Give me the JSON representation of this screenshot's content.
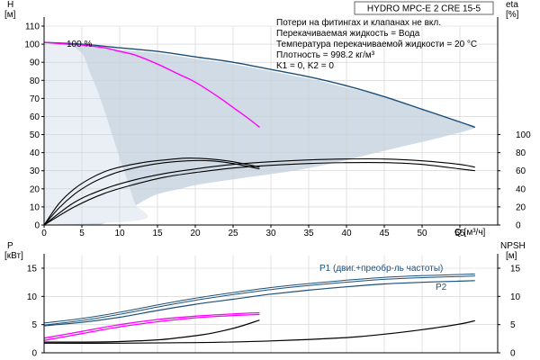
{
  "chart_title": "HYDRO MPC-E 2 CRE 15-5",
  "colors": {
    "envelope": "#d0dbe5",
    "envelope_light": "#e9eff5",
    "dark_blue": "#1b4f7a",
    "pump_curve": "#1b4f7a",
    "magenta": "#ff00ff",
    "black": "#000000"
  },
  "chart_data": [
    {
      "type": "line",
      "id": "head",
      "xlabel": "Q [м³/ч]",
      "ylabel_left": "H\n[м]",
      "ylabel_right": "eta\n[%]",
      "xlim": [
        0,
        60
      ],
      "ylim": [
        0,
        110
      ],
      "x_ticks": [
        0,
        5,
        10,
        15,
        20,
        25,
        30,
        35,
        40,
        45,
        50,
        55
      ],
      "y_ticks": [
        0,
        10,
        20,
        30,
        40,
        50,
        60,
        70,
        80,
        90,
        100,
        110
      ],
      "eta_ticks": [
        0,
        20,
        40,
        60,
        80,
        100
      ],
      "eta_scale": "eta% at H = eta/2",
      "annotation_100": "100 %",
      "notes": [
        "Потери на фитингах и клапанах не вкл.",
        "Перекачиваемая жидкость = Вода",
        "Температура перекачиваемой жидкости = 20 °C",
        "Плотность = 998.2 кг/м³",
        "K1 = 0, K2 = 0"
      ],
      "envelope_outer": [
        [
          0,
          101
        ],
        [
          5,
          99
        ],
        [
          10,
          97
        ],
        [
          15,
          95
        ],
        [
          20,
          92
        ],
        [
          25,
          89
        ],
        [
          30,
          85
        ],
        [
          35,
          81
        ],
        [
          40,
          76
        ],
        [
          45,
          71
        ],
        [
          50,
          64
        ],
        [
          55,
          57
        ],
        [
          57,
          54
        ],
        [
          53,
          49
        ],
        [
          48,
          44
        ],
        [
          43,
          39
        ],
        [
          38,
          34
        ],
        [
          33,
          30
        ],
        [
          28,
          27
        ],
        [
          23,
          24
        ],
        [
          20,
          22
        ],
        [
          18,
          20
        ],
        [
          15,
          17
        ],
        [
          13,
          13
        ],
        [
          11,
          8
        ],
        [
          9,
          4
        ],
        [
          7,
          0
        ],
        [
          0,
          0
        ]
      ],
      "envelope_inner": [
        [
          0,
          101
        ],
        [
          3,
          100
        ],
        [
          5,
          95
        ],
        [
          6,
          85
        ],
        [
          7,
          75
        ],
        [
          8,
          63
        ],
        [
          9,
          50
        ],
        [
          10,
          37
        ],
        [
          11,
          25
        ],
        [
          12,
          12
        ],
        [
          13,
          3
        ],
        [
          0,
          0
        ]
      ],
      "series": [
        {
          "name": "",
          "style": "pump_curve_1",
          "points": [
            [
              0,
              101
            ],
            [
              5,
              100
            ],
            [
              10,
              98
            ],
            [
              15,
              96
            ],
            [
              20,
              93
            ],
            [
              25,
              90
            ],
            [
              30,
              86
            ],
            [
              35,
              82
            ],
            [
              40,
              77
            ],
            [
              45,
              71
            ],
            [
              50,
              64
            ],
            [
              55,
              57
            ],
            [
              57,
              54
            ]
          ]
        },
        {
          "name": "",
          "style": "pump_curve_2",
          "points": [
            [
              0,
              101
            ],
            [
              3,
              100
            ],
            [
              5,
              99.5
            ],
            [
              8,
              98
            ],
            [
              10,
              96
            ],
            [
              12,
              94
            ],
            [
              15,
              89
            ],
            [
              18,
              83
            ],
            [
              20,
              79
            ],
            [
              23,
              71
            ],
            [
              25,
              65
            ],
            [
              27,
              59
            ],
            [
              28.5,
              54
            ]
          ]
        },
        {
          "name": "",
          "style": "eta_single",
          "points": [
            [
              0,
              0
            ],
            [
              2,
              9.5
            ],
            [
              4,
              17
            ],
            [
              6,
              22.5
            ],
            [
              8,
              26.5
            ],
            [
              10,
              29.5
            ],
            [
              13,
              32.5
            ],
            [
              16,
              34.5
            ],
            [
              19,
              35.5
            ],
            [
              22,
              35.5
            ],
            [
              25,
              34
            ],
            [
              28.5,
              31
            ]
          ]
        },
        {
          "name": "",
          "style": "eta_single",
          "points": [
            [
              0,
              0
            ],
            [
              2,
              12
            ],
            [
              4,
              20
            ],
            [
              6,
              25.5
            ],
            [
              8,
              29.5
            ],
            [
              10,
              32
            ],
            [
              13,
              34.5
            ],
            [
              16,
              36
            ],
            [
              19,
              37
            ],
            [
              22,
              36.5
            ],
            [
              25,
              35
            ],
            [
              28.5,
              32
            ]
          ]
        },
        {
          "name": "",
          "style": "eta_double",
          "points": [
            [
              0,
              0
            ],
            [
              4,
              10
            ],
            [
              8,
              17.5
            ],
            [
              12,
              22.5
            ],
            [
              16,
              26.5
            ],
            [
              20,
              29
            ],
            [
              25,
              31.5
            ],
            [
              30,
              33
            ],
            [
              35,
              34
            ],
            [
              40,
              34.5
            ],
            [
              45,
              34.5
            ],
            [
              50,
              33.5
            ],
            [
              55,
              31
            ],
            [
              57,
              30
            ]
          ]
        },
        {
          "name": "",
          "style": "eta_double",
          "points": [
            [
              0,
              0
            ],
            [
              4,
              12.5
            ],
            [
              8,
              20
            ],
            [
              12,
              25
            ],
            [
              16,
              28.5
            ],
            [
              20,
              31
            ],
            [
              25,
              33.5
            ],
            [
              30,
              35
            ],
            [
              35,
              36
            ],
            [
              40,
              36.5
            ],
            [
              45,
              36.5
            ],
            [
              50,
              35.5
            ],
            [
              55,
              33.5
            ],
            [
              57,
              32
            ]
          ]
        }
      ]
    },
    {
      "type": "line",
      "id": "power",
      "ylabel_left": "P\n[кВт]",
      "ylabel_right": "NPSH\n[м]",
      "xlim": [
        0,
        60
      ],
      "ylim": [
        0,
        17
      ],
      "y_ticks": [
        0,
        5,
        10,
        15
      ],
      "npsh_ticks": [
        0,
        5,
        10,
        15
      ],
      "series": [
        {
          "name": "P1 (двиг.+преобр-ль частоты)",
          "style": "p_double_blue",
          "points": [
            [
              0,
              5.1
            ],
            [
              5,
              5.9
            ],
            [
              10,
              7.0
            ],
            [
              15,
              8.3
            ],
            [
              20,
              9.5
            ],
            [
              25,
              10.5
            ],
            [
              30,
              11.4
            ],
            [
              35,
              12.1
            ],
            [
              40,
              12.7
            ],
            [
              45,
              13.2
            ],
            [
              50,
              13.5
            ],
            [
              55,
              13.7
            ],
            [
              57,
              13.8
            ]
          ]
        },
        {
          "name": "P2",
          "style": "p_blue",
          "points": [
            [
              0,
              4.8
            ],
            [
              5,
              5.4
            ],
            [
              10,
              6.3
            ],
            [
              15,
              7.5
            ],
            [
              20,
              8.6
            ],
            [
              25,
              9.5
            ],
            [
              30,
              10.4
            ],
            [
              35,
              11.1
            ],
            [
              40,
              11.7
            ],
            [
              45,
              12.2
            ],
            [
              50,
              12.5
            ],
            [
              55,
              12.7
            ],
            [
              57,
              12.8
            ]
          ]
        },
        {
          "name": "",
          "style": "p_magenta",
          "points": [
            [
              0,
              2.2
            ],
            [
              5,
              3.4
            ],
            [
              10,
              4.6
            ],
            [
              15,
              5.5
            ],
            [
              20,
              6.2
            ],
            [
              25,
              6.6
            ],
            [
              28.5,
              6.8
            ]
          ]
        },
        {
          "name": "",
          "style": "p_magenta",
          "points": [
            [
              0,
              2.6
            ],
            [
              5,
              3.8
            ],
            [
              10,
              5.0
            ],
            [
              15,
              5.9
            ],
            [
              20,
              6.5
            ],
            [
              25,
              6.9
            ],
            [
              28.5,
              7.1
            ]
          ]
        },
        {
          "name": "",
          "style": "npsh",
          "points": [
            [
              0,
              1.9
            ],
            [
              5,
              1.9
            ],
            [
              10,
              2.0
            ],
            [
              15,
              2.3
            ],
            [
              18,
              2.7
            ],
            [
              21,
              3.2
            ],
            [
              24,
              4.0
            ],
            [
              26,
              4.7
            ],
            [
              28.5,
              5.8
            ]
          ]
        },
        {
          "name": "",
          "style": "npsh",
          "points": [
            [
              0,
              1.7
            ],
            [
              10,
              1.7
            ],
            [
              20,
              1.8
            ],
            [
              30,
              2.1
            ],
            [
              40,
              2.7
            ],
            [
              45,
              3.3
            ],
            [
              50,
              4.1
            ],
            [
              55,
              5.1
            ],
            [
              57,
              5.7
            ]
          ]
        }
      ]
    }
  ]
}
